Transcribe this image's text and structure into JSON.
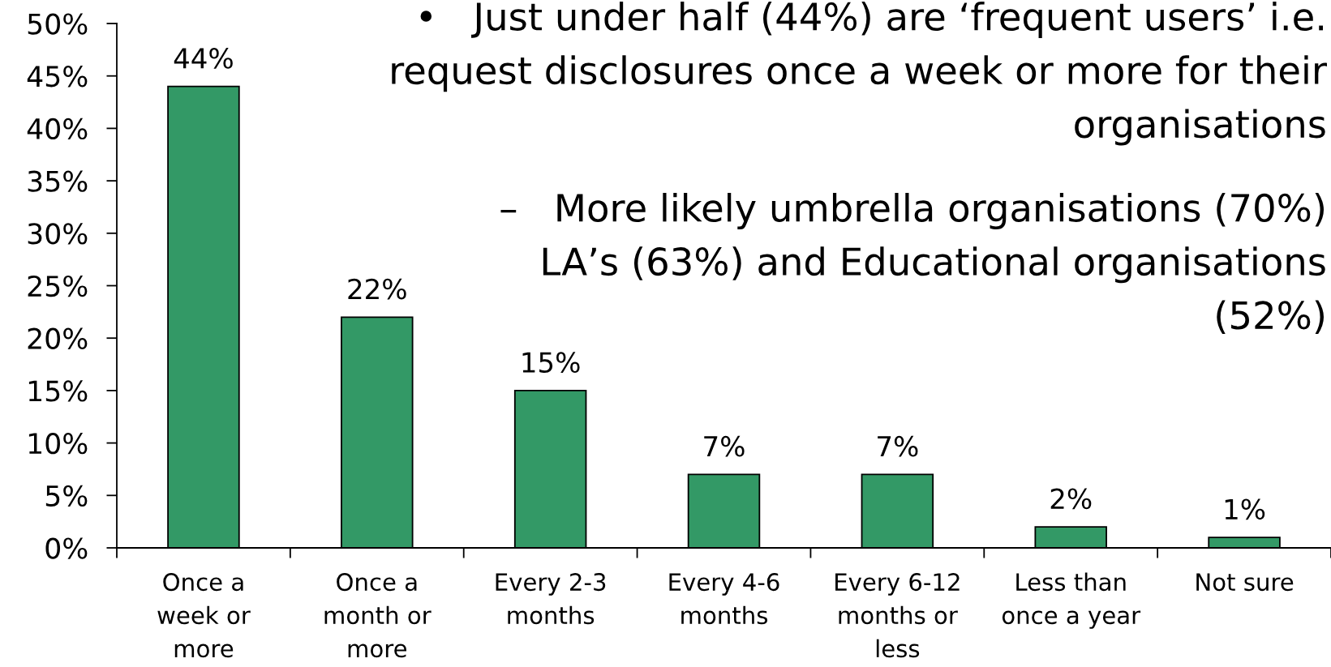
{
  "chart_data": {
    "type": "bar",
    "categories": [
      "Once a\nweek or\nmore",
      "Once a\nmonth or\nmore",
      "Every 2-3\nmonths",
      "Every 4-6\nmonths",
      "Every 6-12\nmonths or\nless",
      "Less than\nonce a year",
      "Not sure"
    ],
    "values": [
      44,
      22,
      15,
      7,
      7,
      2,
      1
    ],
    "color": "#339966",
    "value_labels": [
      "44%",
      "22%",
      "15%",
      "7%",
      "7%",
      "2%",
      "1%"
    ],
    "ylim": [
      0,
      50
    ],
    "yticks": [
      {
        "value": 0,
        "label": "0%"
      },
      {
        "value": 5,
        "label": "5%"
      },
      {
        "value": 10,
        "label": "10%"
      },
      {
        "value": 15,
        "label": "15%"
      },
      {
        "value": 20,
        "label": "20%"
      },
      {
        "value": 25,
        "label": "25%"
      },
      {
        "value": 30,
        "label": "30%"
      },
      {
        "value": 35,
        "label": "35%"
      },
      {
        "value": 40,
        "label": "40%"
      },
      {
        "value": 45,
        "label": "45%"
      },
      {
        "value": 50,
        "label": "50%"
      }
    ],
    "annotations": [
      "•   Just under half (44%) are ‘frequent users’ i.e.\nrequest disclosures once a week or more for their\norganisations",
      "–   More likely umbrella organisations (70%)\nLA’s (63%) and Educational organisations\n(52%)"
    ]
  }
}
